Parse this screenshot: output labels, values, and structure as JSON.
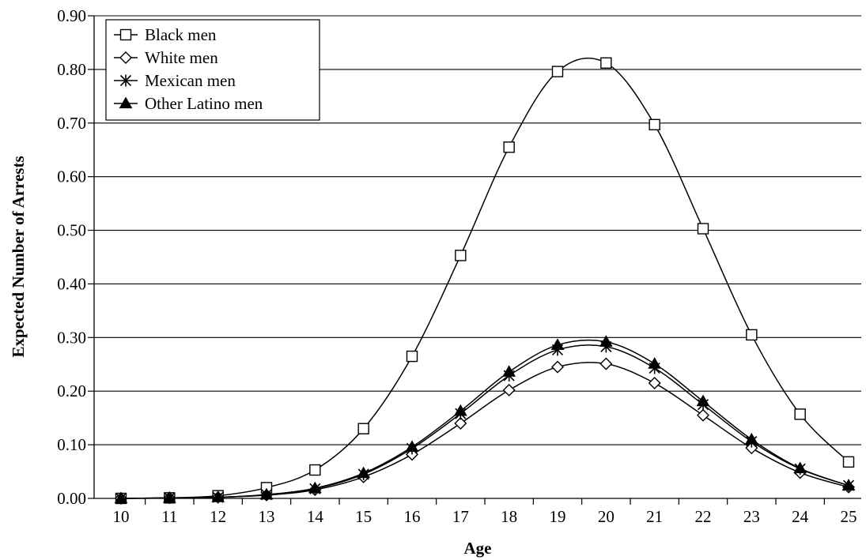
{
  "chart_data": {
    "type": "line",
    "title": "",
    "xlabel": "Age",
    "ylabel": "Expected Number of Arrests",
    "x": [
      10,
      11,
      12,
      13,
      14,
      15,
      16,
      17,
      18,
      19,
      20,
      21,
      22,
      23,
      24,
      25
    ],
    "x_tick_labels": [
      "10",
      "11",
      "12",
      "13",
      "14",
      "15",
      "16",
      "17",
      "18",
      "19",
      "20",
      "21",
      "22",
      "23",
      "24",
      "25"
    ],
    "ylim": [
      0,
      0.9
    ],
    "y_ticks": [
      0,
      0.1,
      0.2,
      0.3,
      0.4,
      0.5,
      0.6,
      0.7,
      0.8,
      0.9
    ],
    "y_tick_labels": [
      "0.00",
      "0.10",
      "0.20",
      "0.30",
      "0.40",
      "0.50",
      "0.60",
      "0.70",
      "0.80",
      "0.90"
    ],
    "grid": "horizontal",
    "legend_position": "top-left",
    "smooth": true,
    "series": [
      {
        "name": "Black men",
        "marker": "open-square",
        "values": [
          0.0,
          0.001,
          0.005,
          0.02,
          0.053,
          0.13,
          0.265,
          0.453,
          0.655,
          0.796,
          0.812,
          0.697,
          0.503,
          0.305,
          0.157,
          0.068
        ]
      },
      {
        "name": "White men",
        "marker": "open-diamond",
        "values": [
          0.0,
          0.001,
          0.002,
          0.006,
          0.016,
          0.04,
          0.082,
          0.14,
          0.202,
          0.245,
          0.251,
          0.215,
          0.155,
          0.094,
          0.048,
          0.021
        ]
      },
      {
        "name": "Mexican men",
        "marker": "star",
        "values": [
          0.0,
          0.001,
          0.002,
          0.007,
          0.018,
          0.045,
          0.093,
          0.158,
          0.229,
          0.277,
          0.283,
          0.243,
          0.175,
          0.106,
          0.055,
          0.024
        ]
      },
      {
        "name": "Other Latino men",
        "marker": "filled-triangle",
        "values": [
          0.0,
          0.001,
          0.002,
          0.007,
          0.019,
          0.047,
          0.096,
          0.163,
          0.236,
          0.286,
          0.292,
          0.251,
          0.181,
          0.11,
          0.056,
          0.024
        ]
      }
    ]
  },
  "colors": {
    "line": "#000000",
    "grid": "#000000",
    "background": "#ffffff"
  }
}
